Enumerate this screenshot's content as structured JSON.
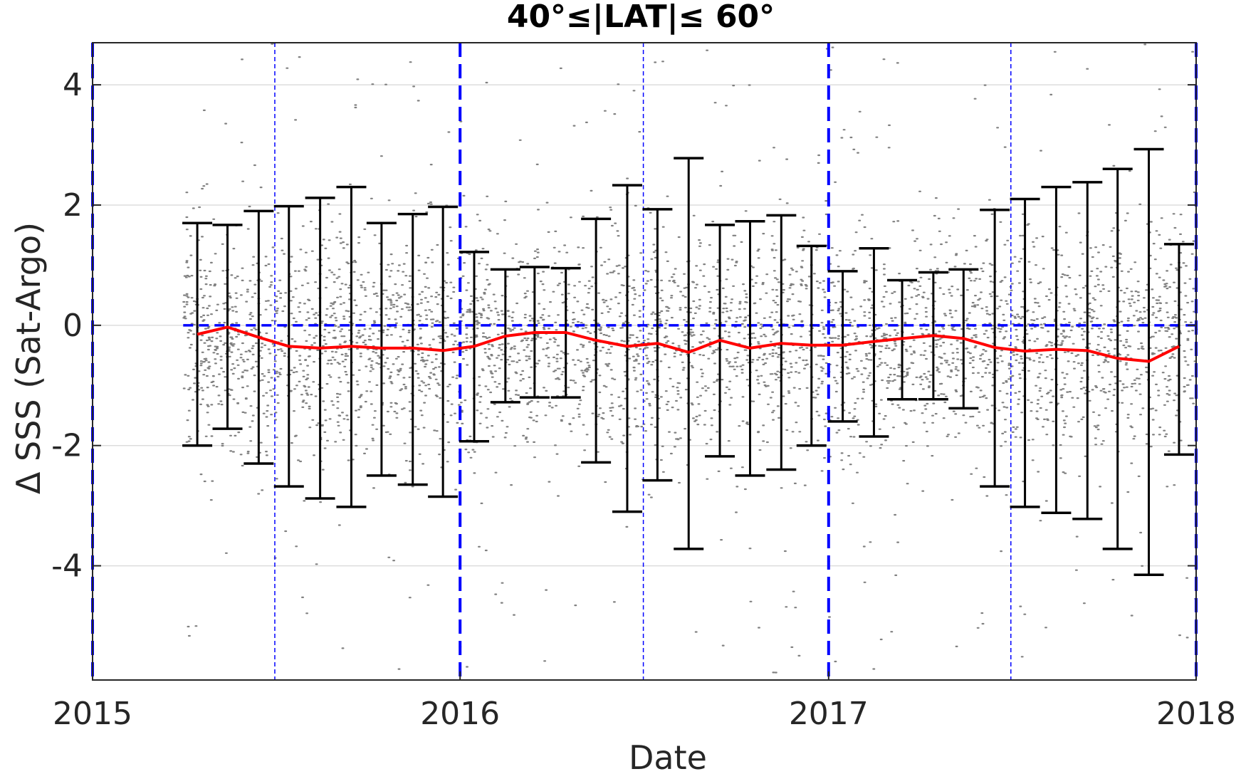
{
  "chart_data": {
    "type": "scatter",
    "title": "40°≤|LAT|≤ 60°",
    "xlabel": "Date",
    "ylabel": "Δ SSS (Sat-Argo)",
    "xlim": [
      "2015-01-01",
      "2018-01-01"
    ],
    "ylim": [
      -5.9,
      4.7
    ],
    "x_ticks": [
      {
        "date": "2015-01-01",
        "label": "2015"
      },
      {
        "date": "2016-01-01",
        "label": "2016"
      },
      {
        "date": "2017-01-01",
        "label": "2017"
      },
      {
        "date": "2018-01-01",
        "label": "2018"
      }
    ],
    "y_ticks": [
      {
        "value": 4,
        "label": "4"
      },
      {
        "value": 2,
        "label": "2"
      },
      {
        "value": 0,
        "label": "0"
      },
      {
        "value": -2,
        "label": "-2"
      },
      {
        "value": -4,
        "label": "-4"
      }
    ],
    "grid": true,
    "colors": {
      "scatter": "#808080",
      "mean_line": "#ff0000",
      "error_bars": "#000000",
      "reference_lines": "#0000ff",
      "grid": "#dddddd",
      "axes": "#262626"
    },
    "reference_lines": {
      "zero_line_y": 0,
      "year_boundaries": [
        "2015-01-01",
        "2016-01-01",
        "2017-01-01",
        "2018-01-01"
      ],
      "mid_year": [
        "2015-07-01",
        "2016-07-01",
        "2017-07-01"
      ]
    },
    "scatter_cloud": {
      "x_start": "2015-04-01",
      "x_end": "2018-01-01",
      "center": -0.3,
      "approx_spread_sd": 0.9,
      "outer_range": [
        -5.9,
        4.7
      ],
      "point_count_approx": 21000
    },
    "series": [
      {
        "x": [
          "2015-04-15",
          "2015-05-15",
          "2015-06-15",
          "2015-07-15",
          "2015-08-15",
          "2015-09-15",
          "2015-10-15",
          "2015-11-15",
          "2015-12-15",
          "2016-01-15",
          "2016-02-15",
          "2016-03-15",
          "2016-04-15",
          "2016-05-15",
          "2016-06-15",
          "2016-07-15",
          "2016-08-15",
          "2016-09-15",
          "2016-10-15",
          "2016-11-15",
          "2016-12-15",
          "2017-01-15",
          "2017-02-15",
          "2017-03-15",
          "2017-04-15",
          "2017-05-15",
          "2017-06-15",
          "2017-07-15",
          "2017-08-15",
          "2017-09-15",
          "2017-10-15",
          "2017-11-15",
          "2017-12-15"
        ],
        "mean": [
          -0.15,
          -0.03,
          -0.2,
          -0.35,
          -0.38,
          -0.35,
          -0.38,
          -0.38,
          -0.42,
          -0.35,
          -0.18,
          -0.12,
          -0.12,
          -0.25,
          -0.35,
          -0.3,
          -0.45,
          -0.25,
          -0.38,
          -0.3,
          -0.33,
          -0.33,
          -0.27,
          -0.22,
          -0.17,
          -0.22,
          -0.37,
          -0.43,
          -0.4,
          -0.42,
          -0.55,
          -0.6,
          -0.35
        ],
        "upper": [
          1.7,
          1.67,
          1.9,
          1.98,
          2.12,
          2.3,
          1.7,
          1.85,
          1.97,
          1.22,
          0.93,
          0.97,
          0.95,
          1.77,
          2.33,
          1.93,
          2.78,
          1.67,
          1.73,
          1.83,
          1.32,
          0.9,
          1.28,
          0.75,
          0.88,
          0.93,
          1.92,
          2.1,
          2.3,
          2.38,
          2.6,
          2.93,
          1.35
        ],
        "lower": [
          -2.0,
          -1.72,
          -2.3,
          -2.68,
          -2.88,
          -3.02,
          -2.5,
          -2.65,
          -2.85,
          -1.93,
          -1.28,
          -1.2,
          -1.2,
          -2.28,
          -3.1,
          -2.58,
          -3.72,
          -2.18,
          -2.5,
          -2.4,
          -2.0,
          -1.6,
          -1.85,
          -1.23,
          -1.23,
          -1.38,
          -2.68,
          -3.02,
          -3.12,
          -3.22,
          -3.72,
          -4.15,
          -2.15
        ]
      }
    ]
  }
}
